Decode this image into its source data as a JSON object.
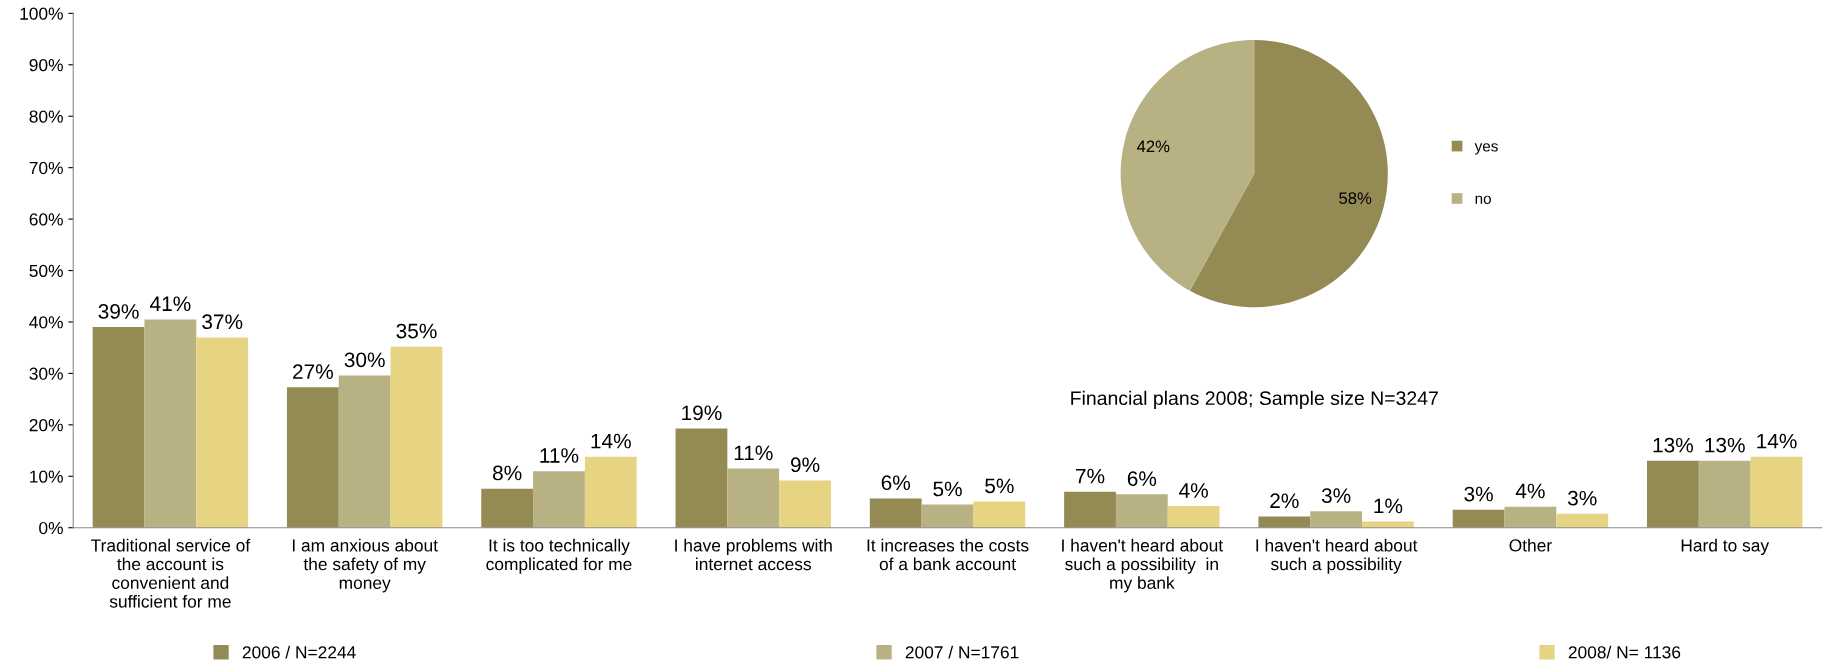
{
  "chart_data": [
    {
      "type": "bar",
      "categories": [
        "Traditional service of\nthe account is\nconvenient and\nsufficient for me",
        "I am anxious about\nthe safety of my\nmoney",
        "It is too technically\ncomplicated for me",
        "I have problems with\ninternet access",
        "It increases the costs\nof a bank account",
        "I haven't heard about\nsuch a possibility  in\nmy bank",
        "I haven't heard about\nsuch a possibility",
        "Other",
        "Hard to say"
      ],
      "series": [
        {
          "name": "2006 / N=2244",
          "color": "#948a54",
          "values": [
            39,
            27.3,
            7.6,
            19.3,
            5.7,
            7,
            2.2,
            3.5,
            13
          ],
          "value_labels": [
            "39%",
            "27%",
            "8%",
            "19%",
            "6%",
            "7%",
            "2%",
            "3%",
            "13%"
          ]
        },
        {
          "name": "2007 / N=1761",
          "color": "#b8b183",
          "values": [
            40.5,
            29.6,
            11,
            11.5,
            4.5,
            6.5,
            3.2,
            4.1,
            13
          ],
          "value_labels": [
            "41%",
            "30%",
            "11%",
            "11%",
            "5%",
            "6%",
            "3%",
            "4%",
            "13%"
          ]
        },
        {
          "name": "2008/ N= 1136",
          "color": "#e6d483",
          "values": [
            37,
            35.2,
            13.8,
            9.2,
            5.1,
            4.2,
            1.2,
            2.7,
            13.8
          ],
          "value_labels": [
            "37%",
            "35%",
            "14%",
            "9%",
            "5%",
            "4%",
            "1%",
            "3%",
            "14%"
          ]
        }
      ],
      "ylim": [
        0,
        100
      ],
      "yticks": [
        {
          "value": 0,
          "label": "0%"
        },
        {
          "value": 10,
          "label": "10%"
        },
        {
          "value": 20,
          "label": "20%"
        },
        {
          "value": 30,
          "label": "30%"
        },
        {
          "value": 40,
          "label": "40%"
        },
        {
          "value": 50,
          "label": "50%"
        },
        {
          "value": 60,
          "label": "60%"
        },
        {
          "value": 70,
          "label": "70%"
        },
        {
          "value": 80,
          "label": "80%"
        },
        {
          "value": 90,
          "label": "90%"
        },
        {
          "value": 100,
          "label": "100%"
        }
      ],
      "grid": false,
      "legend": "bottom"
    },
    {
      "type": "pie",
      "categories": [
        "yes",
        "no"
      ],
      "values": [
        58,
        42
      ],
      "colors": [
        "#948a54",
        "#b8b183"
      ],
      "value_labels": [
        "58%",
        "42%"
      ],
      "legend": "right",
      "annotations": [
        "Financial plans 2008; Sample size N=3247"
      ]
    }
  ]
}
